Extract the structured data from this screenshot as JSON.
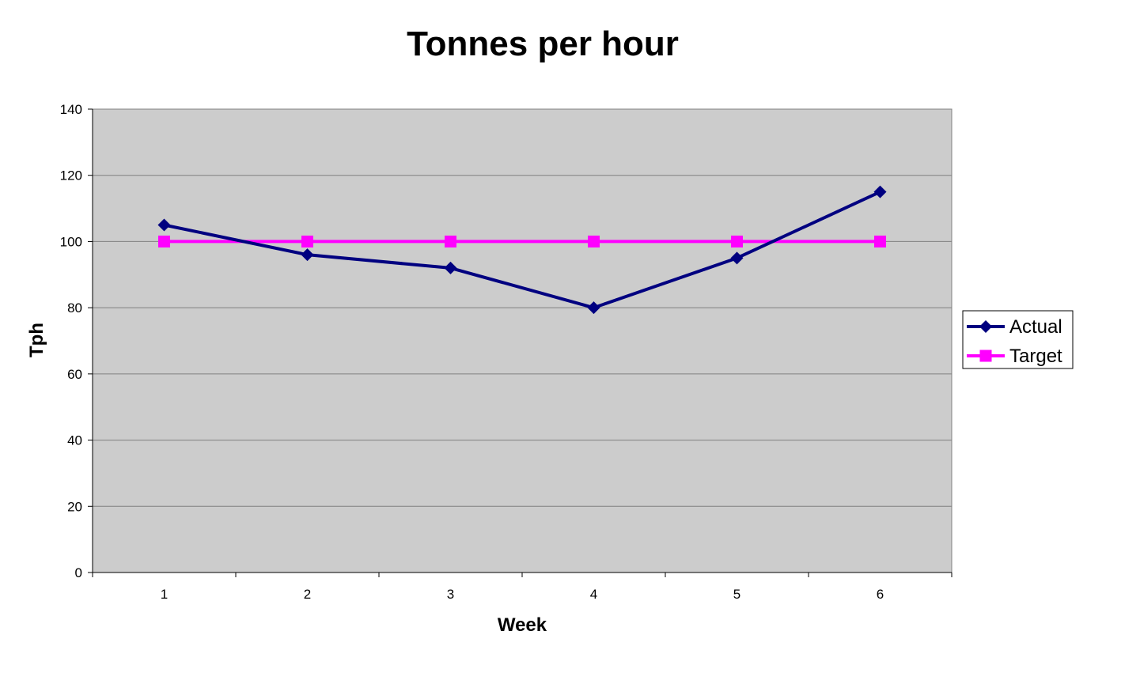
{
  "chart_data": {
    "type": "line",
    "title": "Tonnes per hour",
    "xlabel": "Week",
    "ylabel": "Tph",
    "categories": [
      "1",
      "2",
      "3",
      "4",
      "5",
      "6"
    ],
    "series": [
      {
        "name": "Actual",
        "values": [
          105,
          96,
          92,
          80,
          95,
          115
        ],
        "color": "#000080",
        "marker": "diamond"
      },
      {
        "name": "Target",
        "values": [
          100,
          100,
          100,
          100,
          100,
          100
        ],
        "color": "#ff00ff",
        "marker": "square"
      }
    ],
    "ylim": [
      0,
      140
    ],
    "yticks": [
      0,
      20,
      40,
      60,
      80,
      100,
      120,
      140
    ],
    "grid": true,
    "plot_background": "#cccccc",
    "gridline_color": "#808080",
    "legend_position": "right"
  }
}
